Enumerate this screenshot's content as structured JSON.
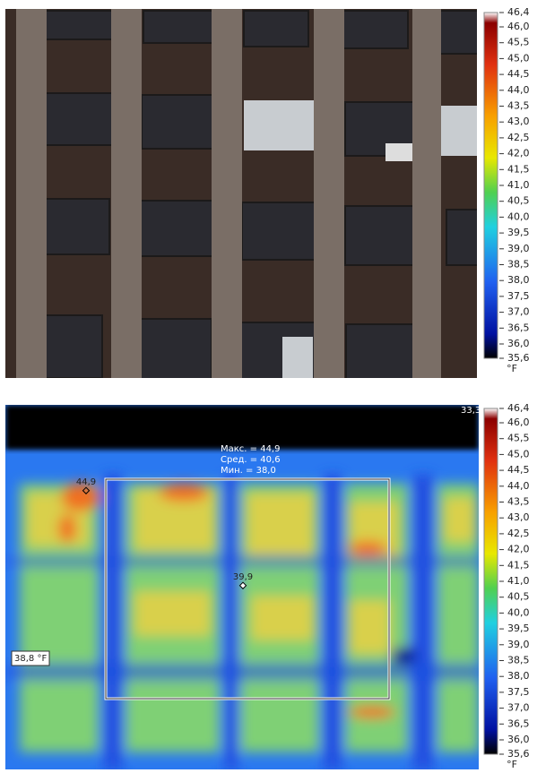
{
  "panels": [
    {
      "scale": {
        "labels": [
          "46,4",
          "46,0",
          "45,5",
          "45,0",
          "44,5",
          "44,0",
          "43,5",
          "43,0",
          "42,5",
          "42,0",
          "41,5",
          "41,0",
          "40,5",
          "40,0",
          "39,5",
          "39,0",
          "38,5",
          "38,0",
          "37,5",
          "37,0",
          "36,5",
          "36,0",
          "35,6"
        ],
        "unit": "°F"
      }
    },
    {
      "scale": {
        "labels": [
          "46,4",
          "46,0",
          "45,5",
          "45,0",
          "44,5",
          "44,0",
          "43,5",
          "43,0",
          "42,5",
          "42,0",
          "41,5",
          "41,0",
          "40,5",
          "40,0",
          "39,5",
          "39,0",
          "38,5",
          "38,0",
          "37,5",
          "37,0",
          "36,5",
          "36,0",
          "35,6"
        ],
        "unit": "°F"
      },
      "corner_value": "33,3",
      "stats": {
        "max": "Макс. = 44,9",
        "avg": "Сред. = 40,6",
        "min": "Мин. = 38,0"
      },
      "points": [
        "44,9",
        "39,9"
      ],
      "isotherm": "38,8 °F"
    }
  ]
}
